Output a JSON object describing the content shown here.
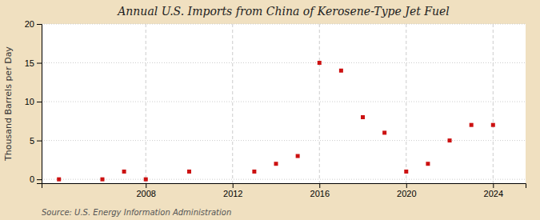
{
  "chart_data": {
    "type": "scatter",
    "title": "Annual U.S. Imports from China of Kerosene-Type Jet Fuel",
    "ylabel": "Thousand Barrels per Day",
    "source": "Source: U.S. Energy Information Administration",
    "x": [
      2004,
      2006,
      2007,
      2008,
      2010,
      2013,
      2014,
      2015,
      2016,
      2017,
      2018,
      2019,
      2020,
      2021,
      2022,
      2023,
      2024
    ],
    "values": [
      0,
      0,
      1,
      0,
      1,
      1,
      2,
      3,
      15,
      14,
      8,
      6,
      1,
      2,
      5,
      7,
      7
    ],
    "color": "#cc1111",
    "marker": "square",
    "xlim": [
      2003.2,
      2025.5
    ],
    "xticks": [
      2008,
      2012,
      2016,
      2020,
      2024
    ],
    "ylim": [
      -0.5,
      20
    ],
    "yticks": [
      0,
      5,
      10,
      15,
      20
    ],
    "grid": true
  }
}
